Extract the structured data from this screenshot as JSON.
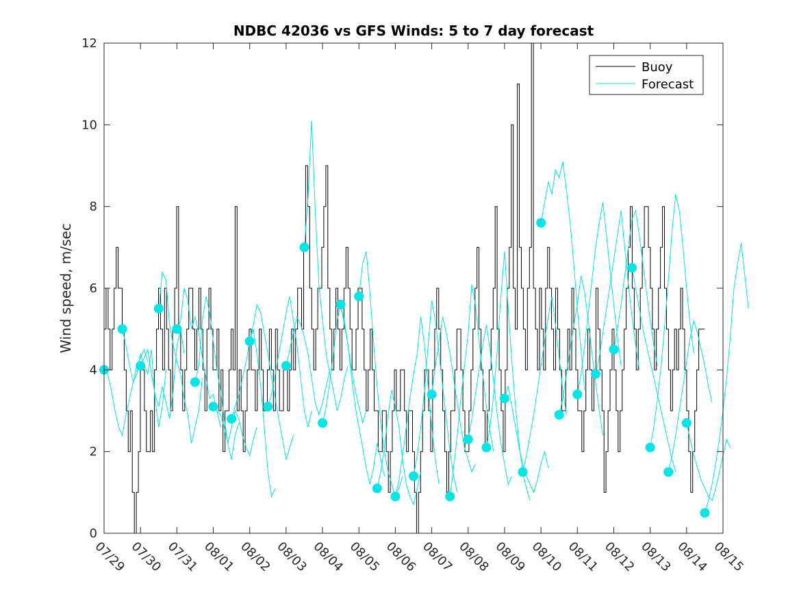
{
  "chart_data": {
    "type": "line",
    "title": "NDBC 42036 vs GFS Winds: 5 to 7 day forecast",
    "xlabel": "",
    "ylabel": "Wind speed, m/sec",
    "ylim": [
      0,
      12
    ],
    "yticks": [
      0,
      2,
      4,
      6,
      8,
      10,
      12
    ],
    "xticks": [
      "07/29",
      "07/30",
      "07/31",
      "08/01",
      "08/02",
      "08/03",
      "08/04",
      "08/05",
      "08/06",
      "08/07",
      "08/08",
      "08/09",
      "08/10",
      "08/11",
      "08/12",
      "08/13",
      "08/14",
      "08/15"
    ],
    "legend": {
      "position": "top-right",
      "entries": [
        "Buoy",
        "Forecast"
      ]
    },
    "colors": {
      "buoy": "#000000",
      "forecast": "#00e5e5",
      "axis": "#262626"
    },
    "buoy": [
      5,
      6,
      5,
      4,
      5,
      6,
      7,
      6,
      6,
      5,
      4,
      3,
      2,
      3,
      1,
      0,
      1,
      2,
      4,
      4,
      3,
      2,
      2,
      3,
      2,
      4,
      5,
      6,
      5,
      4,
      6,
      5,
      4,
      3,
      5,
      6,
      8,
      5,
      4,
      3,
      4,
      5,
      6,
      6,
      5,
      4,
      5,
      6,
      5,
      4,
      3,
      5,
      6,
      5,
      4,
      4,
      5,
      3,
      4,
      2,
      3,
      3,
      4,
      5,
      4,
      8,
      3,
      4,
      3,
      2,
      3,
      4,
      5,
      4,
      4,
      3,
      4,
      5,
      4,
      3,
      3,
      4,
      5,
      4,
      3,
      5,
      4,
      3,
      3,
      4,
      4,
      3,
      4,
      5,
      4,
      5,
      6,
      6,
      5,
      7,
      9,
      8,
      6,
      5,
      4,
      5,
      6,
      6,
      7,
      8,
      9,
      6,
      5,
      4,
      5,
      6,
      5,
      4,
      5,
      6,
      7,
      6,
      5,
      4,
      4,
      5,
      6,
      6,
      5,
      4,
      3,
      4,
      5,
      4,
      3,
      3,
      2,
      2,
      3,
      3,
      2,
      1,
      2,
      3,
      4,
      3,
      3,
      4,
      4,
      3,
      2,
      3,
      3,
      2,
      1,
      0,
      1,
      2,
      3,
      4,
      4,
      3,
      2,
      4,
      5,
      6,
      5,
      4,
      3,
      2,
      1,
      2,
      3,
      3,
      4,
      5,
      5,
      4,
      3,
      2,
      2,
      3,
      4,
      5,
      6,
      7,
      5,
      4,
      3,
      2,
      3,
      4,
      5,
      6,
      8,
      5,
      4,
      3,
      2,
      4,
      6,
      7,
      10,
      6,
      5,
      11,
      7,
      6,
      5,
      4,
      6,
      7,
      12,
      6,
      5,
      4,
      6,
      5,
      4,
      6,
      7,
      6,
      5,
      4,
      6,
      5,
      4,
      3,
      3,
      4,
      5,
      4,
      6,
      5,
      4,
      3,
      3,
      2,
      3,
      4,
      5,
      4,
      3,
      4,
      6,
      5,
      4,
      3,
      1,
      2,
      3,
      4,
      5,
      4,
      3,
      2,
      3,
      4,
      5,
      6,
      7,
      8,
      6,
      5,
      4,
      5,
      6,
      7,
      8,
      8,
      7,
      6,
      5,
      4,
      5,
      6,
      7,
      8,
      6,
      5,
      4,
      3,
      4,
      5,
      4,
      5,
      6,
      5,
      4,
      3,
      2,
      1,
      2,
      3,
      4,
      5,
      5,
      5,
      5
    ],
    "forecast_runs": [
      [
        4.0,
        3.9,
        3.5,
        3.0,
        2.6,
        2.4,
        2.9,
        3.3,
        3.7,
        4.1,
        4.3,
        4.5,
        4.2
      ],
      [
        5.0,
        4.6,
        4.1,
        3.7,
        3.9,
        4.4,
        4.1,
        3.9,
        4.5,
        3.3,
        2.6,
        3.1,
        4.0
      ],
      [
        4.1,
        4.3,
        4.5,
        3.9,
        3.4,
        3.1,
        3.6,
        3.2,
        2.8,
        3.5,
        4.6,
        5.0,
        4.4
      ],
      [
        5.5,
        6.4,
        6.2,
        5.1,
        4.6,
        4.2,
        3.9,
        3.3,
        2.9,
        2.2,
        2.6,
        3.0,
        3.8
      ],
      [
        5.0,
        5.2,
        6.0,
        5.7,
        5.0,
        5.3,
        4.9,
        4.3,
        3.8,
        3.3,
        3.4,
        3.0,
        2.6
      ],
      [
        3.7,
        4.1,
        5.2,
        5.8,
        5.4,
        4.7,
        4.0,
        3.5,
        2.8,
        2.2,
        1.8,
        2.4,
        2.7
      ],
      [
        3.1,
        3.0,
        2.9,
        2.6,
        2.2,
        2.6,
        3.0,
        2.8,
        2.4,
        2.1,
        1.9,
        2.3,
        2.6
      ],
      [
        2.8,
        3.1,
        3.4,
        3.8,
        4.2,
        4.7,
        5.0,
        4.4,
        3.6,
        2.6,
        1.5,
        0.9,
        1.1
      ],
      [
        4.7,
        5.1,
        5.6,
        5.4,
        4.9,
        4.4,
        3.8,
        3.3,
        2.8,
        2.3,
        1.8,
        2.1,
        2.4
      ],
      [
        3.1,
        3.4,
        3.9,
        4.4,
        4.9,
        5.4,
        5.8,
        5.2,
        4.6,
        3.8,
        3.0,
        2.6,
        3.0
      ],
      [
        4.1,
        4.5,
        4.9,
        5.3,
        5.1,
        4.8,
        4.4,
        3.8,
        3.2,
        2.9,
        3.2,
        3.6,
        4.0
      ],
      [
        7.0,
        8.2,
        10.1,
        7.9,
        6.1,
        5.2,
        4.4,
        3.9,
        3.5,
        3.0,
        3.3,
        3.8,
        4.1
      ],
      [
        2.7,
        3.1,
        3.7,
        4.4,
        5.2,
        5.6,
        5.1,
        4.6,
        4.0,
        3.5,
        3.1,
        2.7,
        3.0
      ],
      [
        5.6,
        5.2,
        4.6,
        3.8,
        3.1,
        2.6,
        2.1,
        1.6,
        1.2,
        1.6,
        2.2,
        1.8,
        1.4
      ],
      [
        5.8,
        6.6,
        6.9,
        5.9,
        4.7,
        3.6,
        2.7,
        2.0,
        1.5,
        1.2,
        0.9,
        1.1,
        1.4
      ],
      [
        1.1,
        1.5,
        2.1,
        2.9,
        3.5,
        3.1,
        2.6,
        1.8,
        1.2,
        0.9,
        0.7,
        1.1,
        1.5
      ],
      [
        0.9,
        1.3,
        1.9,
        2.6,
        3.3,
        3.9,
        4.4,
        5.3,
        4.6,
        3.6,
        2.6,
        1.8,
        1.2
      ],
      [
        1.4,
        1.9,
        2.6,
        3.5,
        4.6,
        5.7,
        5.2,
        4.4,
        3.6,
        2.8,
        2.0,
        1.4,
        1.0
      ],
      [
        3.4,
        4.1,
        4.7,
        5.3,
        4.9,
        4.4,
        3.8,
        3.2,
        2.6,
        2.1,
        1.8,
        1.5,
        1.7
      ],
      [
        0.9,
        1.6,
        2.4,
        3.3,
        4.1,
        4.9,
        6.1,
        5.6,
        4.7,
        3.9,
        3.1,
        2.5,
        2.0
      ],
      [
        2.3,
        2.8,
        3.4,
        4.0,
        4.6,
        5.1,
        4.5,
        3.7,
        2.9,
        2.2,
        1.7,
        1.2,
        1.4
      ],
      [
        2.1,
        2.6,
        3.4,
        4.5,
        5.8,
        6.9,
        5.5,
        4.2,
        3.1,
        2.2,
        1.5,
        1.1,
        0.8
      ],
      [
        3.3,
        3.6,
        3.1,
        2.6,
        2.1,
        1.7,
        1.4,
        1.2,
        1.0,
        1.3,
        1.7,
        2.0,
        1.6
      ],
      [
        1.5,
        1.9,
        2.4,
        2.9,
        3.5,
        4.1,
        4.7,
        5.3,
        5.8,
        5.1,
        4.3,
        3.5,
        2.9
      ],
      [
        7.6,
        8.1,
        8.6,
        8.3,
        8.9,
        8.7,
        9.1,
        8.4,
        7.6,
        6.6,
        5.5,
        4.5,
        3.5
      ],
      [
        2.9,
        3.3,
        3.9,
        4.5,
        5.1,
        5.6,
        6.3,
        5.9,
        5.2,
        4.4,
        3.7,
        3.0,
        2.4
      ],
      [
        3.4,
        3.9,
        4.6,
        5.4,
        6.2,
        7.0,
        7.6,
        8.1,
        7.3,
        6.4,
        5.6,
        4.8,
        4.1
      ],
      [
        3.9,
        4.3,
        4.9,
        5.5,
        6.1,
        6.7,
        7.3,
        7.9,
        7.0,
        6.1,
        5.3,
        4.6,
        4.0
      ],
      [
        4.5,
        5.0,
        5.6,
        6.3,
        7.0,
        7.7,
        7.9,
        7.3,
        6.6,
        5.9,
        5.2,
        4.6,
        4.1
      ],
      [
        6.5,
        6.0,
        5.5,
        5.0,
        4.6,
        4.2,
        3.8,
        3.4,
        3.0,
        2.6,
        2.2,
        1.8,
        1.5
      ],
      [
        2.1,
        2.6,
        3.3,
        4.1,
        5.1,
        6.2,
        7.4,
        8.3,
        7.9,
        7.0,
        6.0,
        5.1,
        4.4
      ],
      [
        1.5,
        1.9,
        2.4,
        3.0,
        3.6,
        4.2,
        4.8,
        5.2,
        4.9,
        4.5,
        4.1,
        3.6,
        3.2
      ],
      [
        2.7,
        2.3,
        1.9,
        1.6,
        1.3,
        1.1,
        0.9,
        0.8,
        1.1,
        1.5,
        1.9,
        2.3,
        2.1
      ],
      [
        0.5,
        0.8,
        1.2,
        1.7,
        2.3,
        3.0,
        3.8,
        4.8,
        6.0,
        6.6,
        7.1,
        6.3,
        5.5
      ]
    ]
  }
}
